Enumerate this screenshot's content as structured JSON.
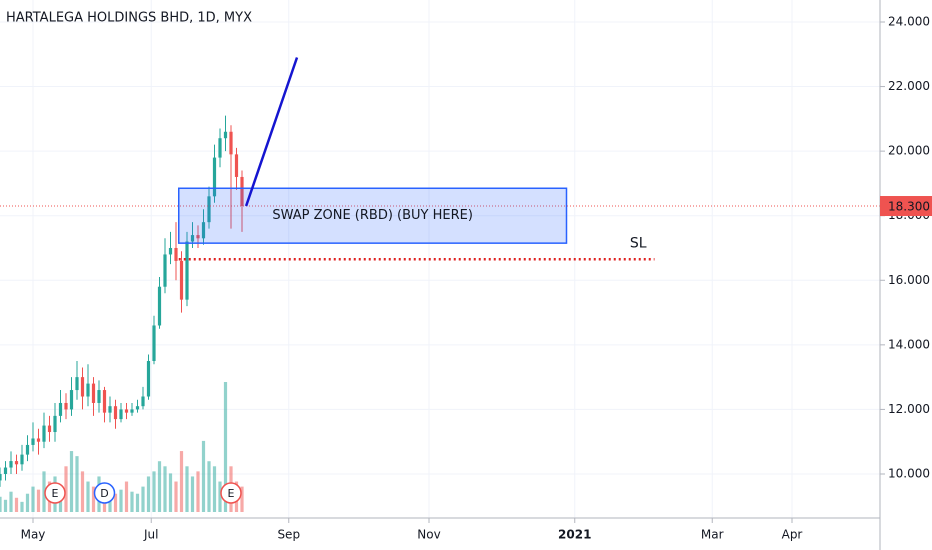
{
  "chart_data": {
    "type": "candlestick",
    "title": "HARTALEGA HOLDINGS BHD, 1D, MYX",
    "x": [
      0,
      2,
      4,
      6,
      8,
      10,
      12,
      14,
      16,
      18,
      20,
      22,
      24,
      26,
      28,
      30,
      32,
      34,
      36,
      38,
      40,
      42,
      44,
      46,
      48,
      50,
      52,
      54,
      56,
      58,
      60,
      62,
      64,
      66,
      68,
      70,
      72,
      74,
      76,
      78,
      80,
      82,
      84,
      86,
      88
    ],
    "open": [
      9.8,
      10.0,
      10.2,
      10.4,
      10.3,
      10.6,
      10.9,
      11.1,
      11.0,
      11.5,
      11.3,
      11.8,
      12.2,
      12.0,
      12.6,
      13.0,
      12.4,
      12.8,
      12.2,
      12.6,
      11.9,
      12.1,
      11.7,
      12.0,
      11.9,
      12.0,
      12.1,
      12.4,
      13.5,
      14.6,
      15.8,
      16.8,
      17.0,
      16.6,
      15.4,
      17.2,
      17.4,
      17.3,
      17.8,
      18.6,
      19.8,
      20.4,
      20.6,
      19.9,
      19.2
    ],
    "high": [
      10.2,
      10.4,
      10.7,
      10.6,
      10.9,
      11.2,
      11.6,
      11.4,
      11.9,
      11.8,
      12.2,
      12.6,
      12.5,
      13.0,
      13.5,
      13.3,
      13.4,
      13.0,
      12.9,
      12.7,
      12.4,
      12.3,
      12.2,
      12.2,
      12.2,
      12.3,
      12.7,
      13.7,
      14.9,
      16.1,
      17.3,
      17.5,
      17.8,
      16.9,
      17.5,
      17.8,
      17.7,
      18.2,
      18.9,
      20.2,
      20.7,
      21.1,
      20.8,
      20.1,
      19.4
    ],
    "low": [
      9.6,
      9.8,
      10.0,
      10.0,
      10.1,
      10.4,
      10.7,
      10.6,
      10.8,
      11.0,
      11.0,
      11.6,
      11.7,
      11.8,
      12.3,
      12.0,
      12.1,
      11.8,
      11.9,
      11.6,
      11.6,
      11.4,
      11.6,
      11.7,
      11.8,
      11.9,
      12.0,
      12.3,
      13.4,
      14.5,
      15.6,
      16.5,
      16.0,
      15.0,
      15.2,
      17.0,
      17.0,
      17.1,
      17.6,
      18.4,
      19.5,
      20.0,
      17.6,
      18.8,
      17.5
    ],
    "close": [
      10.0,
      10.2,
      10.4,
      10.3,
      10.6,
      10.9,
      11.1,
      11.0,
      11.5,
      11.3,
      11.8,
      12.2,
      12.0,
      12.6,
      13.0,
      12.4,
      12.8,
      12.2,
      12.6,
      11.9,
      12.1,
      11.7,
      12.0,
      11.9,
      12.0,
      12.1,
      12.4,
      13.5,
      14.6,
      15.8,
      16.8,
      17.0,
      16.6,
      15.4,
      17.2,
      17.4,
      17.3,
      17.8,
      18.6,
      19.8,
      20.4,
      20.6,
      19.9,
      19.2,
      18.3
    ],
    "volume": [
      15,
      12,
      20,
      14,
      10,
      18,
      25,
      22,
      40,
      30,
      35,
      20,
      45,
      60,
      55,
      40,
      30,
      25,
      35,
      28,
      20,
      18,
      22,
      30,
      20,
      18,
      25,
      35,
      40,
      50,
      45,
      38,
      30,
      60,
      45,
      35,
      40,
      70,
      50,
      45,
      30,
      128,
      45,
      30,
      25
    ],
    "up_color": "#26a69a",
    "down_color": "#ef5350",
    "xlim": [
      0,
      320
    ],
    "xticks": [
      {
        "value": 12,
        "label": "May"
      },
      {
        "value": 55,
        "label": "Jul"
      },
      {
        "value": 105,
        "label": "Sep"
      },
      {
        "value": 156,
        "label": "Nov"
      },
      {
        "value": 209,
        "label": "2021"
      },
      {
        "value": 259,
        "label": "Mar"
      },
      {
        "value": 288,
        "label": "Apr"
      }
    ],
    "ylim": [
      8.637,
      24.681
    ],
    "yticks": [
      {
        "value": 10,
        "label": "10.000"
      },
      {
        "value": 12,
        "label": "12.000"
      },
      {
        "value": 14,
        "label": "14.000"
      },
      {
        "value": 16,
        "label": "16.000"
      },
      {
        "value": 18,
        "label": "18.000"
      },
      {
        "value": 20,
        "label": "20.000"
      },
      {
        "value": 22,
        "label": "22.000"
      },
      {
        "value": 24,
        "label": "24.000"
      }
    ],
    "grid": true,
    "last_price": {
      "value": 18.3,
      "label": "18.300"
    },
    "events": [
      {
        "x": 20,
        "label": "E"
      },
      {
        "x": 38,
        "label": "D"
      },
      {
        "x": 84,
        "label": "E"
      }
    ],
    "zone": {
      "label": "SWAP ZONE (RBD) (BUY HERE)",
      "top": 18.85,
      "bottom": 17.15,
      "x": [
        65,
        206
      ]
    },
    "stop_loss": {
      "label": "SL",
      "value": 16.65,
      "x": [
        65,
        238
      ]
    },
    "trend_line": {
      "x": [
        89.5,
        108
      ],
      "y": [
        18.3,
        22.9
      ]
    }
  }
}
